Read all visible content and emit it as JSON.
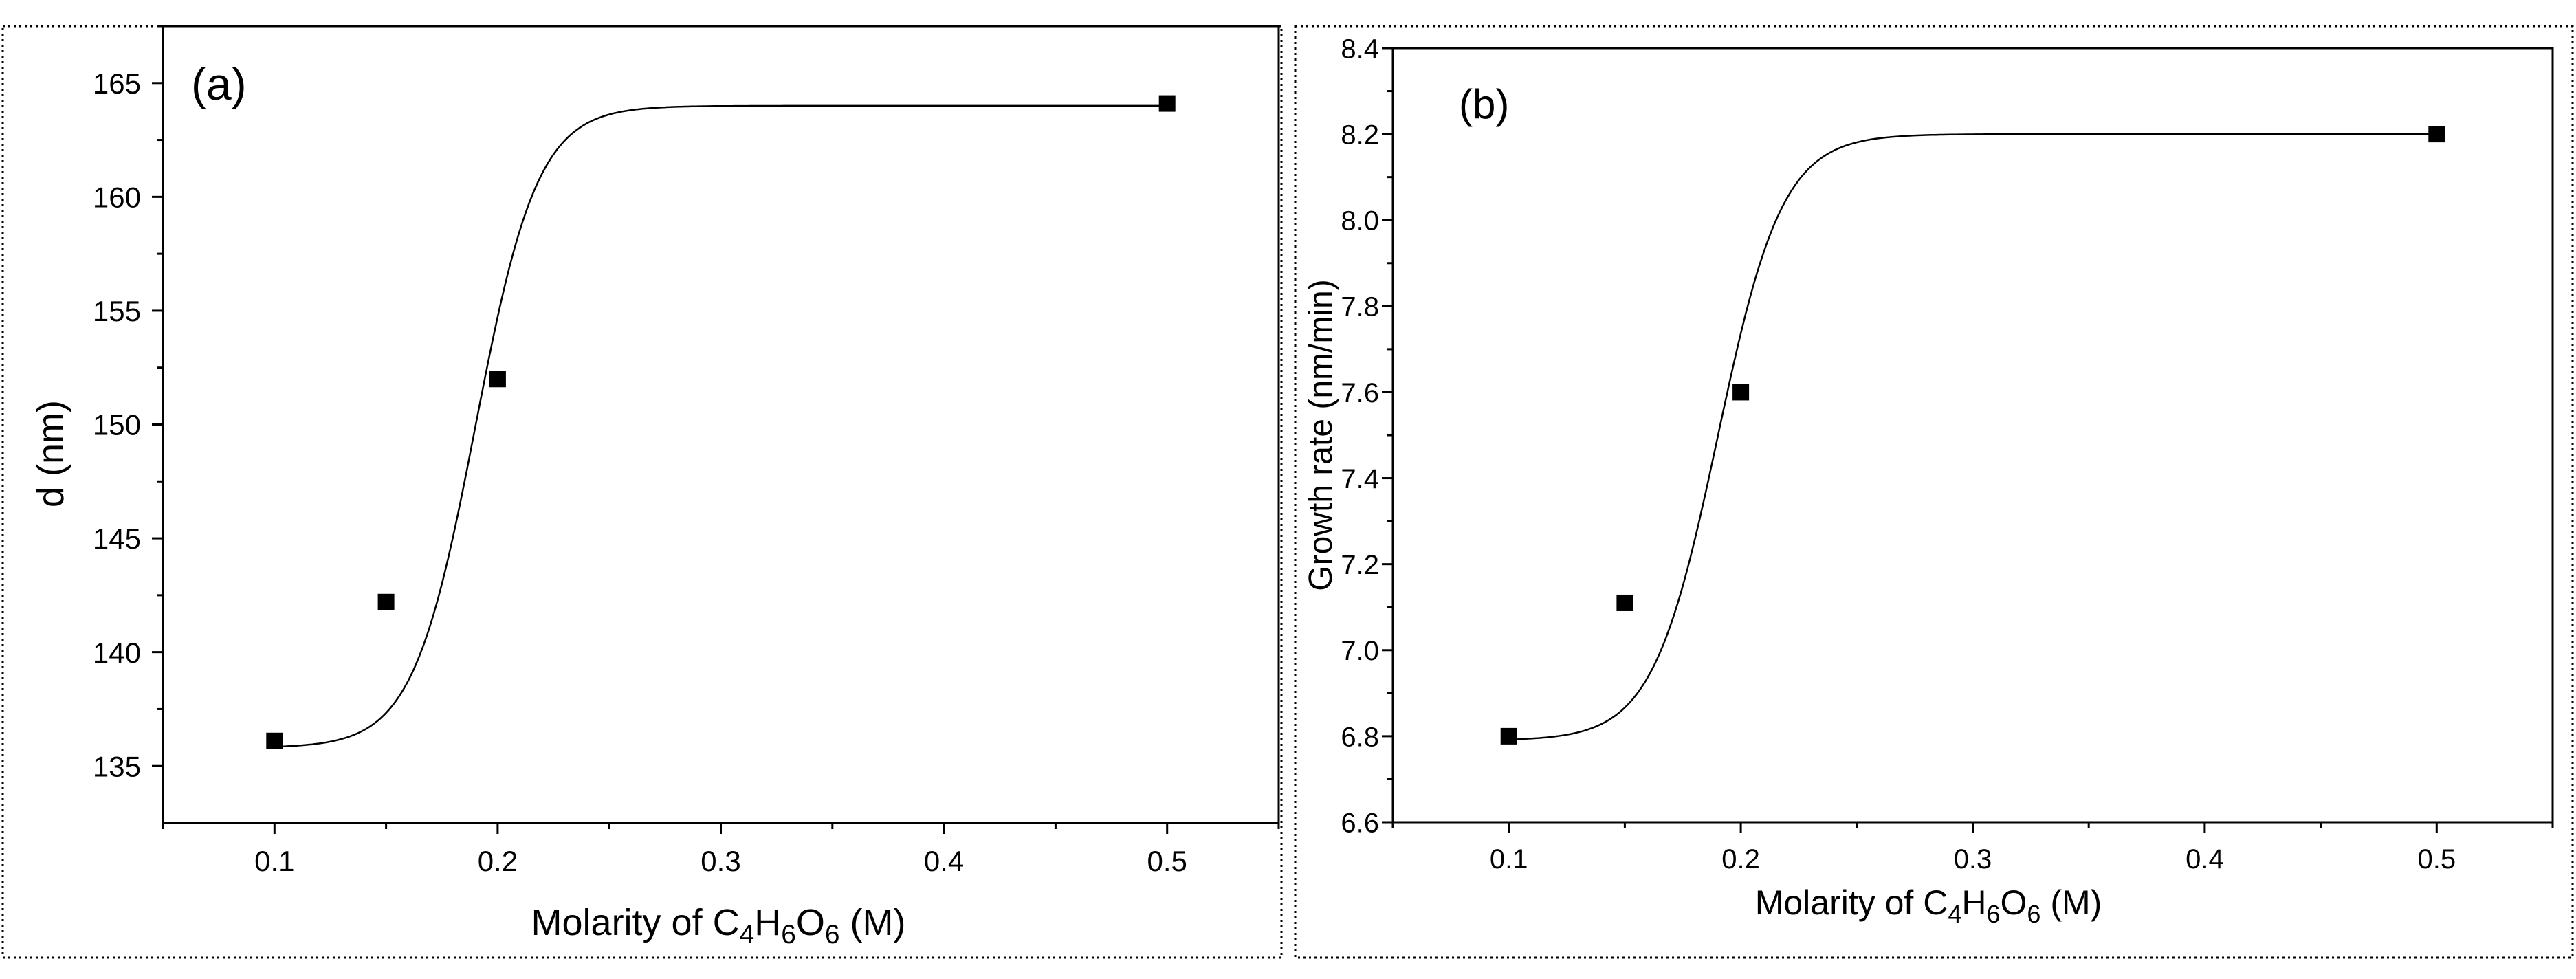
{
  "chart_data": [
    {
      "type": "scatter",
      "panel_label": "(a)",
      "xlabel_parts": [
        "Molarity of C",
        "4",
        "H",
        "6",
        "O",
        "6",
        " (M)"
      ],
      "ylabel": "d (nm)",
      "xlim": [
        0.05,
        0.55
      ],
      "ylim": [
        132.5,
        167.5
      ],
      "xticks": [
        0.1,
        0.2,
        0.3,
        0.4,
        0.5
      ],
      "xtick_labels": [
        "0.1",
        "0.2",
        "0.3",
        "0.4",
        "0.5"
      ],
      "yticks": [
        135,
        140,
        145,
        150,
        155,
        160,
        165
      ],
      "ytick_labels": [
        "135",
        "140",
        "145",
        "150",
        "155",
        "160",
        "165"
      ],
      "series": [
        {
          "name": "d",
          "marker": "square",
          "x": [
            0.1,
            0.15,
            0.2,
            0.5
          ],
          "y": [
            136.1,
            142.2,
            152.0,
            164.1
          ]
        }
      ],
      "fit": {
        "type": "sigmoid",
        "A1": 135.8,
        "A2": 164.0,
        "x0": 0.19,
        "dx": 0.014
      }
    },
    {
      "type": "scatter",
      "panel_label": "(b)",
      "xlabel_parts": [
        "Molarity of C",
        "4",
        "H",
        "6",
        "O",
        "6",
        " (M)"
      ],
      "ylabel": "Growth rate (nm/min)",
      "xlim": [
        0.05,
        0.55
      ],
      "ylim": [
        6.6,
        8.4
      ],
      "xticks": [
        0.1,
        0.2,
        0.3,
        0.4,
        0.5
      ],
      "xtick_labels": [
        "0.1",
        "0.2",
        "0.3",
        "0.4",
        "0.5"
      ],
      "yticks": [
        6.6,
        6.8,
        7.0,
        7.2,
        7.4,
        7.6,
        7.8,
        8.0,
        8.2,
        8.4
      ],
      "ytick_labels": [
        "6.6",
        "6.8",
        "7.0",
        "7.2",
        "7.4",
        "7.6",
        "7.8",
        "8.0",
        "8.2",
        "8.4"
      ],
      "series": [
        {
          "name": "Growth rate",
          "marker": "square",
          "x": [
            0.1,
            0.15,
            0.2,
            0.5
          ],
          "y": [
            6.8,
            7.11,
            7.6,
            8.2
          ]
        }
      ],
      "fit": {
        "type": "sigmoid",
        "A1": 6.79,
        "A2": 8.2,
        "x0": 0.19,
        "dx": 0.014
      }
    }
  ]
}
